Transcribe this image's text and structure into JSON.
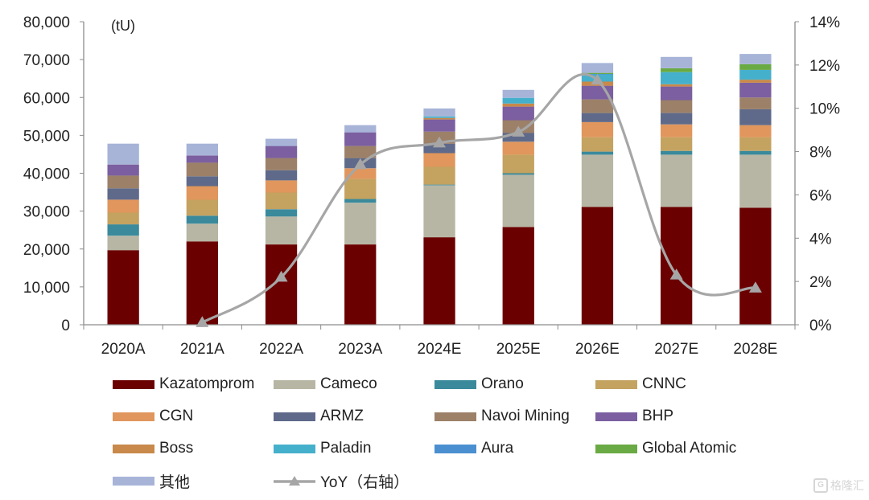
{
  "chart_data": {
    "type": "bar",
    "stacked": true,
    "title": "",
    "unit_label": "(tU)",
    "xlabel": "",
    "ylabel": "(tU)",
    "ylim": [
      0,
      80000
    ],
    "yticks": [
      "0",
      "10,000",
      "20,000",
      "30,000",
      "40,000",
      "50,000",
      "60,000",
      "70,000",
      "80,000"
    ],
    "y2lim": [
      0,
      14
    ],
    "y2ticks": [
      "0%",
      "2%",
      "4%",
      "6%",
      "8%",
      "10%",
      "12%",
      "14%"
    ],
    "grid": false,
    "legend_position": "bottom",
    "categories": [
      "2020A",
      "2021A",
      "2022A",
      "2023A",
      "2024E",
      "2025E",
      "2026E",
      "2027E",
      "2028E"
    ],
    "series": [
      {
        "name": "Kazatomprom",
        "color": "#6b0000",
        "values": [
          19700,
          22000,
          21200,
          21200,
          23100,
          25800,
          31100,
          31100,
          30900
        ]
      },
      {
        "name": "Cameco",
        "color": "#b7b6a4",
        "values": [
          3800,
          4700,
          7400,
          11000,
          13700,
          13800,
          13800,
          13800,
          14000
        ]
      },
      {
        "name": "Orano",
        "color": "#3a8a9c",
        "values": [
          3000,
          2100,
          1900,
          1000,
          200,
          400,
          800,
          1000,
          1000
        ]
      },
      {
        "name": "CNNC",
        "color": "#c4a260",
        "values": [
          3100,
          4200,
          4400,
          5300,
          4700,
          4900,
          3800,
          3600,
          3600
        ]
      },
      {
        "name": "CGN",
        "color": "#e0965c",
        "values": [
          3400,
          3600,
          3200,
          2800,
          3600,
          3400,
          4000,
          3400,
          3200
        ]
      },
      {
        "name": "ARMZ",
        "color": "#5f6a8a",
        "values": [
          3000,
          2600,
          2700,
          2700,
          2500,
          2300,
          2400,
          3000,
          4200
        ]
      },
      {
        "name": "Navoi Mining",
        "color": "#9c8068",
        "values": [
          3400,
          3600,
          3200,
          3200,
          3200,
          3400,
          3600,
          3400,
          3100
        ]
      },
      {
        "name": "BHP",
        "color": "#7b5fa0",
        "values": [
          2900,
          1900,
          3200,
          3600,
          3200,
          3600,
          3600,
          3600,
          3900
        ]
      },
      {
        "name": "Boss",
        "color": "#c8894a",
        "values": [
          0,
          0,
          0,
          0,
          400,
          800,
          1100,
          600,
          800
        ]
      },
      {
        "name": "Paladin",
        "color": "#45b0cc",
        "values": [
          0,
          0,
          0,
          0,
          400,
          1500,
          1900,
          3200,
          2600
        ]
      },
      {
        "name": "Aura",
        "color": "#4a90d0",
        "values": [
          0,
          0,
          0,
          0,
          0,
          0,
          100,
          0,
          0
        ]
      },
      {
        "name": "Global Atomic",
        "color": "#6aaa44",
        "values": [
          0,
          0,
          0,
          0,
          0,
          0,
          300,
          1000,
          1500
        ]
      },
      {
        "name": "其他",
        "color": "#a7b4d8",
        "values": [
          5500,
          3100,
          1900,
          1900,
          2100,
          2100,
          2600,
          3000,
          2700
        ]
      }
    ],
    "line_series": {
      "name": "YoY（右轴）",
      "axis": "right",
      "color": "#a6a6a6",
      "marker": "triangle",
      "values": [
        null,
        0.1,
        2.2,
        7.4,
        8.4,
        8.9,
        11.3,
        2.3,
        1.7
      ],
      "unit": "%"
    }
  },
  "watermark": {
    "icon": "G",
    "text": "格隆汇"
  }
}
